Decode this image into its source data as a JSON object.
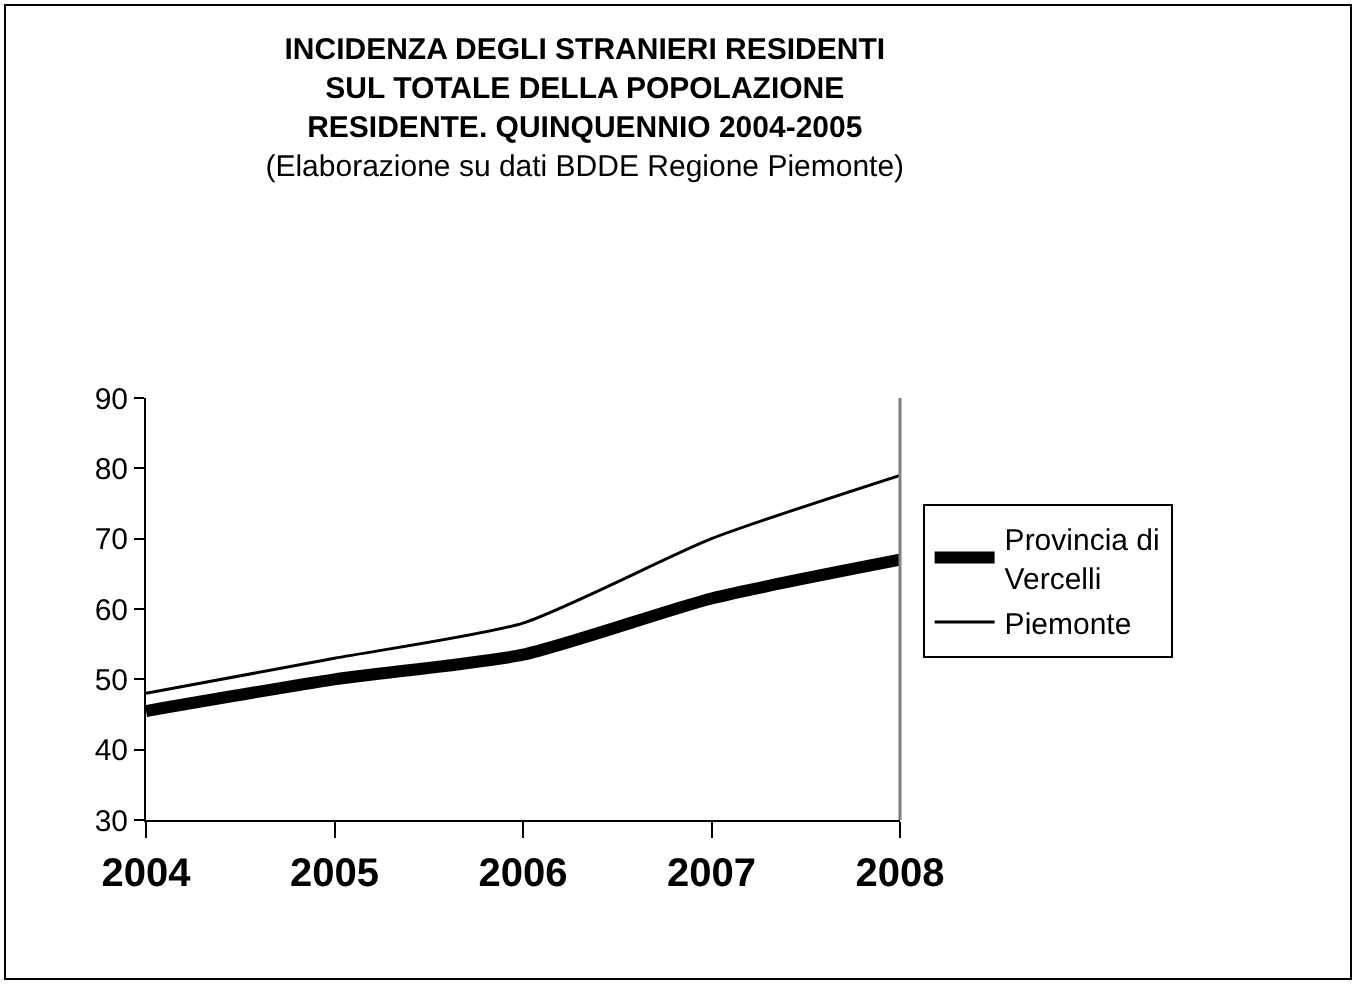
{
  "chart_data": {
    "type": "line",
    "title": "INCIDENZA DEGLI STRANIERI RESIDENTI SUL TOTALE DELLA POPOLAZIONE RESIDENTE. QUINQUENNIO 2004-2005",
    "subtitle": "(Elaborazione su dati BDDE Regione Piemonte)",
    "categories": [
      "2004",
      "2005",
      "2006",
      "2007",
      "2008"
    ],
    "series": [
      {
        "name": "Provincia di Vercelli",
        "color": "#000000",
        "values": [
          45.5,
          50,
          53.5,
          61.5,
          67
        ]
      },
      {
        "name": "Piemonte",
        "color": "#000000",
        "values": [
          48,
          53,
          58,
          70,
          79
        ]
      }
    ],
    "ylim": [
      30,
      90
    ],
    "yticks": [
      30,
      40,
      50,
      60,
      70,
      80,
      90
    ],
    "grid": false,
    "legend": "right",
    "marker": "none",
    "line_style": "solid"
  }
}
